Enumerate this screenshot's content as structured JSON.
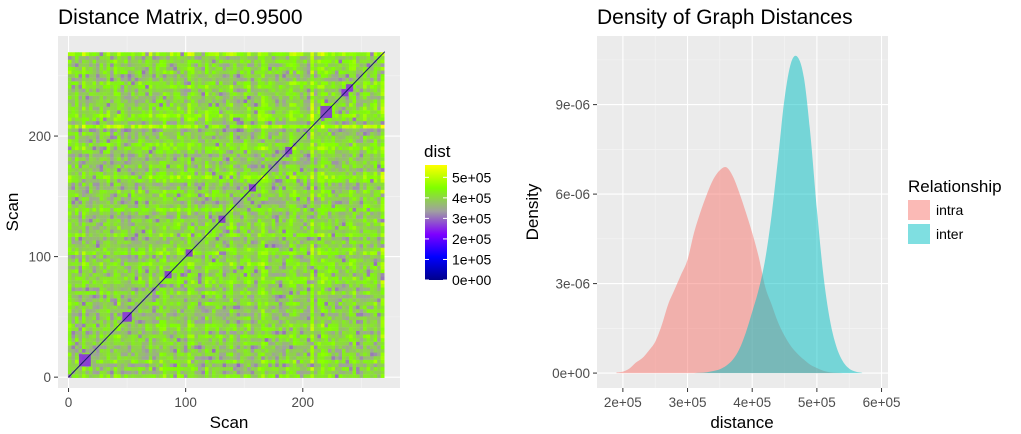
{
  "chart_data": [
    {
      "type": "heatmap",
      "title": "Distance Matrix, d=0.9500",
      "xlabel": "Scan",
      "ylabel": "Scan",
      "xlim": [
        -9,
        283
      ],
      "ylim": [
        -9,
        283
      ],
      "n_scans": 270,
      "x_ticks": [
        0,
        100,
        200
      ],
      "y_ticks": [
        0,
        100,
        200
      ],
      "x_tick_labels": [
        "0",
        "100",
        "200"
      ],
      "y_tick_labels": [
        "0",
        "100",
        "200"
      ],
      "blocks": [
        {
          "start": 9,
          "end": 19
        },
        {
          "start": 46,
          "end": 54
        },
        {
          "start": 82,
          "end": 88
        },
        {
          "start": 100,
          "end": 106
        },
        {
          "start": 128,
          "end": 134
        },
        {
          "start": 154,
          "end": 160
        },
        {
          "start": 185,
          "end": 191
        },
        {
          "start": 215,
          "end": 225
        },
        {
          "start": 233,
          "end": 239
        },
        {
          "start": 237,
          "end": 243
        }
      ],
      "legend": {
        "title": "dist",
        "position": "right",
        "breaks": [
          0,
          100000,
          200000,
          300000,
          400000,
          500000
        ],
        "labels": [
          "0e+00",
          "1e+05",
          "2e+05",
          "3e+05",
          "4e+05",
          "5e+05"
        ],
        "range": [
          0,
          560000
        ],
        "gradient": [
          "#00008b",
          "#0000ff",
          "#7f00ff",
          "#a0a0a0",
          "#7fff00",
          "#ffff00"
        ]
      },
      "grid": true
    },
    {
      "type": "area",
      "title": "Density of Graph Distances",
      "xlabel": "distance",
      "ylabel": "Density",
      "xlim": [
        160000,
        610000
      ],
      "ylim": [
        -5e-07,
        1.13e-05
      ],
      "x_ticks": [
        200000,
        300000,
        400000,
        500000,
        600000
      ],
      "x_tick_labels": [
        "2e+05",
        "3e+05",
        "4e+05",
        "5e+05",
        "6e+05"
      ],
      "y_ticks": [
        0,
        3e-06,
        6e-06,
        9e-06
      ],
      "y_tick_labels": [
        "0e+00",
        "3e-06",
        "6e-06",
        "9e-06"
      ],
      "x": [
        190000,
        200000,
        210000,
        220000,
        230000,
        240000,
        250000,
        260000,
        270000,
        280000,
        290000,
        300000,
        310000,
        320000,
        330000,
        340000,
        350000,
        360000,
        370000,
        380000,
        390000,
        400000,
        410000,
        420000,
        430000,
        440000,
        450000,
        460000,
        470000,
        480000,
        490000,
        500000,
        510000,
        520000,
        530000,
        540000,
        550000,
        560000,
        570000
      ],
      "series": [
        {
          "name": "intra",
          "color": "#f8766d",
          "values": [
            2e-08,
            5e-08,
            1.5e-07,
            3.5e-07,
            5e-07,
            7.5e-07,
            1.05e-06,
            1.6e-06,
            2.3e-06,
            2.8e-06,
            3.3e-06,
            3.8e-06,
            4.7e-06,
            5.4e-06,
            6e-06,
            6.5e-06,
            6.8e-06,
            6.9e-06,
            6.6e-06,
            6.05e-06,
            5.4e-06,
            4.7e-06,
            3.9e-06,
            2.9e-06,
            2.3e-06,
            1.7e-06,
            1.25e-06,
            9e-07,
            6.5e-07,
            4.5e-07,
            2.8e-07,
            1.7e-07,
            8e-08,
            3e-08,
            1e-08,
            0,
            0,
            0,
            0
          ]
        },
        {
          "name": "inter",
          "color": "#00bfc4",
          "values": [
            0,
            0,
            0,
            0,
            0,
            0,
            0,
            0,
            0,
            0,
            0,
            0,
            0,
            1e-08,
            3e-08,
            7e-08,
            1.3e-07,
            2.5e-07,
            4.5e-07,
            8e-07,
            1.35e-06,
            2.05e-06,
            2.8e-06,
            3.8e-06,
            5.3e-06,
            7.2e-06,
            9.2e-06,
            1.04e-05,
            1.06e-05,
            9.9e-06,
            8e-06,
            5.5e-06,
            3.3e-06,
            1.8e-06,
            9e-07,
            4e-07,
            1.5e-07,
            5e-08,
            1e-08
          ]
        }
      ],
      "legend": {
        "title": "Relationship",
        "position": "right",
        "entries": [
          "intra",
          "inter"
        ]
      },
      "grid": true
    }
  ]
}
